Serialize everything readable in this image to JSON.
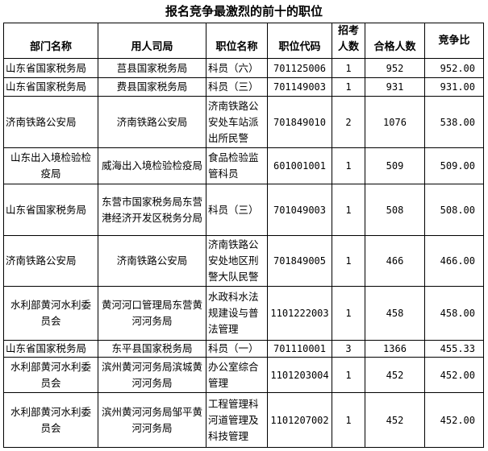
{
  "title": "报名竞争最激烈的前十的职位",
  "table": {
    "headers": [
      "部门名称",
      "用人司局",
      "职位名称",
      "职位代码",
      "招考人数",
      "合格人数",
      "竞争比"
    ],
    "rows": [
      [
        "山东省国家税务局",
        "莒县国家税务局",
        "科员（六）",
        "701125006",
        "1",
        "952",
        "952.00"
      ],
      [
        "山东省国家税务局",
        "费县国家税务局",
        "科员（三）",
        "701149003",
        "1",
        "931",
        "931.00"
      ],
      [
        "济南铁路公安局",
        "济南铁路公安局",
        "济南铁路公安处车站派出所民警",
        "701849010",
        "2",
        "1076",
        "538.00"
      ],
      [
        "山东出入境检验检疫局",
        "威海出入境检验检疫局",
        "食品检验监管科员",
        "601001001",
        "1",
        "509",
        "509.00"
      ],
      [
        "山东省国家税务局",
        "东营市国家税务局东营港经济开发区税务分局",
        "科员（三）",
        "701049003",
        "1",
        "508",
        "508.00"
      ],
      [
        "济南铁路公安局",
        "济南铁路公安局",
        "济南铁路公安处地区刑警大队民警",
        "701849005",
        "1",
        "466",
        "466.00"
      ],
      [
        "水利部黄河水利委员会",
        "黄河河口管理局东营黄河河务局",
        "水政科水法规建设与普法管理",
        "1101222003",
        "1",
        "458",
        "458.00"
      ],
      [
        "山东省国家税务局",
        "东平县国家税务局",
        "科员（一）",
        "701110001",
        "3",
        "1366",
        "455.33"
      ],
      [
        "水利部黄河水利委员会",
        "滨州黄河河务局滨城黄河河务局",
        "办公室综合管理",
        "1101203004",
        "1",
        "452",
        "452.00"
      ],
      [
        "水利部黄河水利委员会",
        "滨州黄河河务局邹平黄河河务局",
        "工程管理科河道管理及科技管理",
        "1101207002",
        "1",
        "452",
        "452.00"
      ]
    ]
  }
}
